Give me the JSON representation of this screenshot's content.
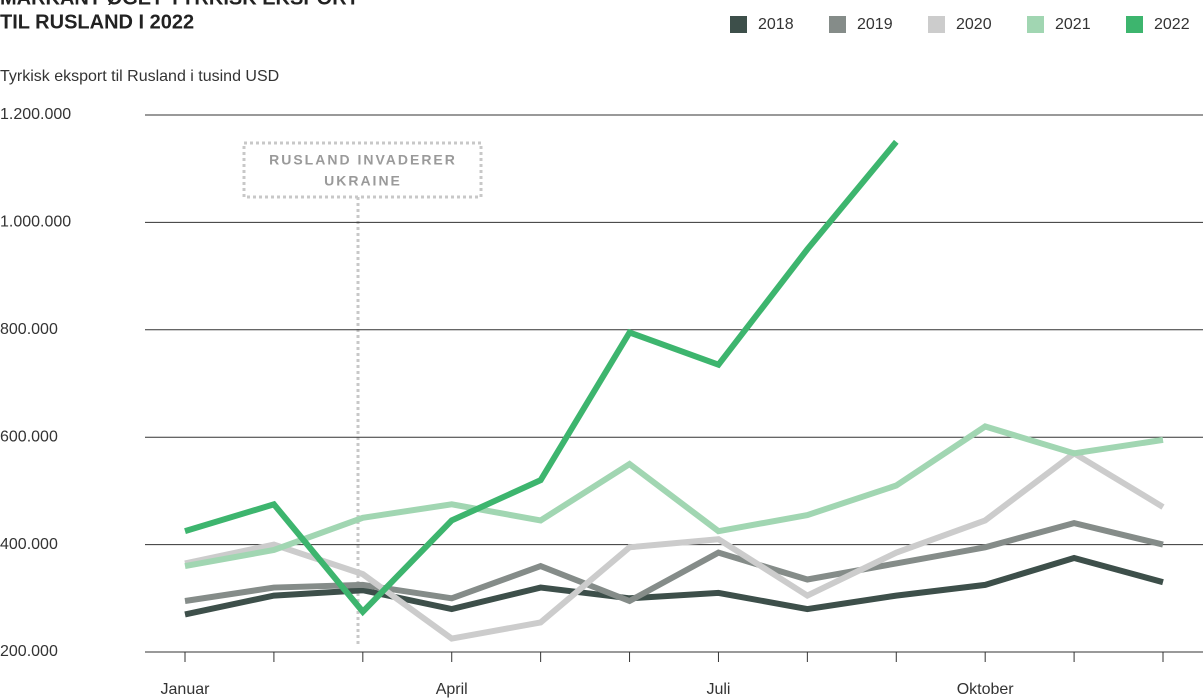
{
  "chart_data": {
    "type": "line",
    "title": [
      "MARKANT ØGET TYRKISK EKSPORT",
      "TIL RUSLAND I 2022"
    ],
    "y_label": "Tyrkisk eksport til Rusland i tusind USD",
    "annotation": [
      "RUSLAND INVADERER",
      "UKRAINE"
    ],
    "categories": [
      "Januar",
      null,
      null,
      "April",
      null,
      null,
      "Juli",
      null,
      null,
      "Oktober",
      null,
      null
    ],
    "series": [
      {
        "name": "2018",
        "color": "#3d4f4a",
        "values": [
          270000,
          305000,
          315000,
          280000,
          320000,
          300000,
          310000,
          280000,
          305000,
          325000,
          375000,
          330000
        ]
      },
      {
        "name": "2019",
        "color": "#858c89",
        "values": [
          295000,
          320000,
          325000,
          300000,
          360000,
          295000,
          385000,
          335000,
          365000,
          395000,
          440000,
          400000
        ]
      },
      {
        "name": "2020",
        "color": "#cccccc",
        "values": [
          365000,
          400000,
          345000,
          225000,
          255000,
          395000,
          410000,
          305000,
          385000,
          445000,
          570000,
          470000
        ]
      },
      {
        "name": "2021",
        "color": "#a1d6b2",
        "values": [
          360000,
          390000,
          450000,
          475000,
          445000,
          550000,
          425000,
          455000,
          510000,
          620000,
          570000,
          595000
        ]
      },
      {
        "name": "2022",
        "color": "#3db56e",
        "values": [
          425000,
          475000,
          275000,
          445000,
          520000,
          795000,
          735000,
          950000,
          1150000,
          null,
          null,
          null
        ]
      }
    ],
    "ylim": [
      200000,
      1200000
    ],
    "yticks": [
      {
        "value": 200000,
        "label": "200.000"
      },
      {
        "value": 400000,
        "label": "400.000"
      },
      {
        "value": 600000,
        "label": "600.000"
      },
      {
        "value": 800000,
        "label": "800.000"
      },
      {
        "value": 1000000,
        "label": "1.000.000"
      },
      {
        "value": 1200000,
        "label": "1.200.000"
      }
    ],
    "grid": true,
    "legend": "top-right"
  }
}
